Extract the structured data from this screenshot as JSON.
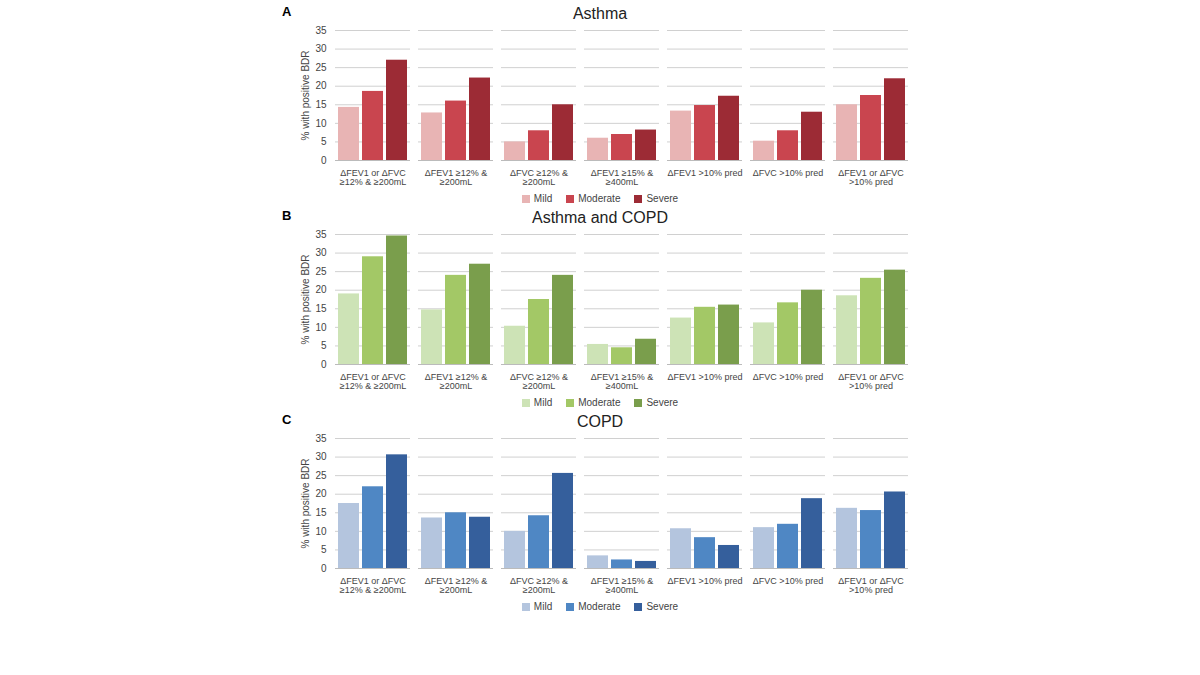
{
  "chart_data": [
    {
      "type": "bar",
      "title": "Asthma",
      "annotations": [
        "A"
      ],
      "categories": [
        "ΔFEV1 or ΔFVC ≥12% & ≥200mL",
        "ΔFEV1 ≥12% & ≥200mL",
        "ΔFVC ≥12% & ≥200mL",
        "ΔFEV1 ≥15% & ≥400mL",
        "ΔFEV1 >10% pred",
        "ΔFVC >10% pred",
        "ΔFEV1 or ΔFVC >10% pred"
      ],
      "series": [
        {
          "name": "Mild",
          "color": "#e8b4b4",
          "values": [
            14.3,
            12.8,
            5,
            6,
            13.3,
            5.2,
            15
          ]
        },
        {
          "name": "Moderate",
          "color": "#c9454f",
          "values": [
            18.6,
            16,
            8,
            7,
            14.8,
            8,
            17.5
          ]
        },
        {
          "name": "Severe",
          "color": "#9c2b35",
          "values": [
            27,
            22.2,
            15,
            8.2,
            17.3,
            13,
            22
          ]
        }
      ],
      "y_label": "% with positive BDR",
      "ylim": [
        0,
        35
      ],
      "yticks": [
        0,
        5,
        10,
        15,
        20,
        25,
        30,
        35
      ],
      "grid": true,
      "legend": "bottom"
    },
    {
      "type": "bar",
      "title": "Asthma and COPD",
      "annotations": [
        "B"
      ],
      "categories": [
        "ΔFEV1 or ΔFVC ≥12% & ≥200mL",
        "ΔFEV1 ≥12% & ≥200mL",
        "ΔFVC ≥12% & ≥200mL",
        "ΔFEV1 ≥15% & ≥400mL",
        "ΔFEV1 >10% pred",
        "ΔFVC >10% pred",
        "ΔFEV1 or ΔFVC >10% pred"
      ],
      "series": [
        {
          "name": "Mild",
          "color": "#cde3b6",
          "values": [
            19,
            14.7,
            10.3,
            5.4,
            12.5,
            11.2,
            18.5
          ]
        },
        {
          "name": "Moderate",
          "color": "#a3c866",
          "values": [
            29,
            24,
            17.5,
            4.5,
            15.4,
            16.6,
            23.2
          ]
        },
        {
          "name": "Severe",
          "color": "#7a9e4c",
          "values": [
            34.6,
            27,
            24,
            6.8,
            16,
            20,
            25.4
          ]
        }
      ],
      "y_label": "% with positive BDR",
      "ylim": [
        0,
        35
      ],
      "yticks": [
        0,
        5,
        10,
        15,
        20,
        25,
        30,
        35
      ],
      "grid": true,
      "legend": "bottom"
    },
    {
      "type": "bar",
      "title": "COPD",
      "annotations": [
        "C"
      ],
      "categories": [
        "ΔFEV1 or ΔFVC ≥12% & ≥200mL",
        "ΔFEV1 ≥12% & ≥200mL",
        "ΔFVC ≥12% & ≥200mL",
        "ΔFEV1 ≥15% & ≥400mL",
        "ΔFEV1 >10% pred",
        "ΔFVC >10% pred",
        "ΔFEV1 or ΔFVC >10% pred"
      ],
      "series": [
        {
          "name": "Mild",
          "color": "#b4c5de",
          "values": [
            17.5,
            13.6,
            10,
            3.4,
            10.7,
            11,
            16.2
          ]
        },
        {
          "name": "Moderate",
          "color": "#4f87c4",
          "values": [
            22,
            15,
            14.2,
            2.3,
            8.3,
            11.9,
            15.6
          ]
        },
        {
          "name": "Severe",
          "color": "#355f9c",
          "values": [
            30.6,
            13.8,
            25.6,
            1.9,
            6.2,
            18.8,
            20.6
          ]
        }
      ],
      "y_label": "% with positive BDR",
      "ylim": [
        0,
        35
      ],
      "yticks": [
        0,
        5,
        10,
        15,
        20,
        25,
        30,
        35
      ],
      "grid": true,
      "legend": "bottom"
    }
  ]
}
